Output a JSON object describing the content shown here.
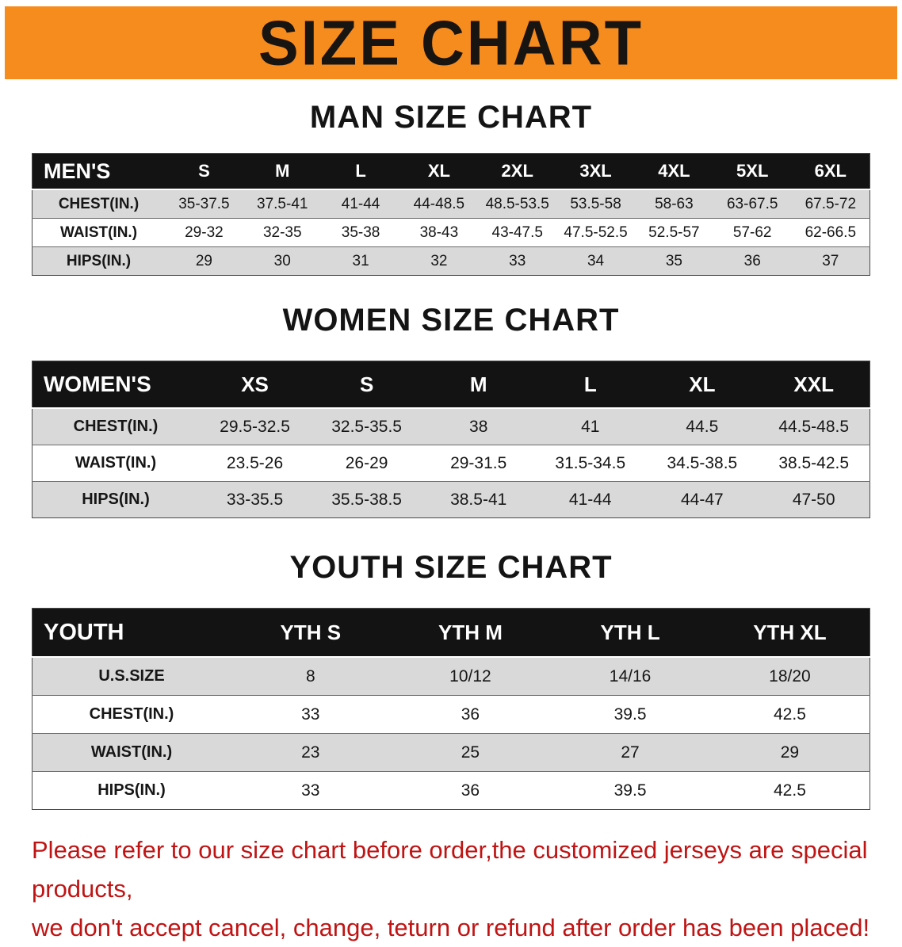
{
  "banner": {
    "title": "SIZE CHART",
    "bg_color": "#f68b1e",
    "text_color": "#181411"
  },
  "sections": [
    {
      "heading": "MAN SIZE CHART",
      "table": {
        "header": [
          "MEN'S",
          "S",
          "M",
          "L",
          "XL",
          "2XL",
          "3XL",
          "4XL",
          "5XL",
          "6XL"
        ],
        "rows": [
          {
            "label": "CHEST(IN.)",
            "values": [
              "35-37.5",
              "37.5-41",
              "41-44",
              "44-48.5",
              "48.5-53.5",
              "53.5-58",
              "58-63",
              "63-67.5",
              "67.5-72"
            ]
          },
          {
            "label": "WAIST(IN.)",
            "values": [
              "29-32",
              "32-35",
              "35-38",
              "38-43",
              "43-47.5",
              "47.5-52.5",
              "52.5-57",
              "57-62",
              "62-66.5"
            ]
          },
          {
            "label": "HIPS(IN.)",
            "values": [
              "29",
              "30",
              "31",
              "32",
              "33",
              "34",
              "35",
              "36",
              "37"
            ]
          }
        ]
      }
    },
    {
      "heading": "WOMEN SIZE CHART",
      "table": {
        "header": [
          "WOMEN'S",
          "XS",
          "S",
          "M",
          "L",
          "XL",
          "XXL"
        ],
        "rows": [
          {
            "label": "CHEST(IN.)",
            "values": [
              "29.5-32.5",
              "32.5-35.5",
              "38",
              "41",
              "44.5",
              "44.5-48.5"
            ]
          },
          {
            "label": "WAIST(IN.)",
            "values": [
              "23.5-26",
              "26-29",
              "29-31.5",
              "31.5-34.5",
              "34.5-38.5",
              "38.5-42.5"
            ]
          },
          {
            "label": "HIPS(IN.)",
            "values": [
              "33-35.5",
              "35.5-38.5",
              "38.5-41",
              "41-44",
              "44-47",
              "47-50"
            ]
          }
        ]
      }
    },
    {
      "heading": "YOUTH SIZE CHART",
      "table": {
        "header": [
          "YOUTH",
          "YTH S",
          "YTH M",
          "YTH L",
          "YTH XL"
        ],
        "rows": [
          {
            "label": "U.S.SIZE",
            "values": [
              "8",
              "10/12",
              "14/16",
              "18/20"
            ]
          },
          {
            "label": "CHEST(IN.)",
            "values": [
              "33",
              "36",
              "39.5",
              "42.5"
            ]
          },
          {
            "label": "WAIST(IN.)",
            "values": [
              "23",
              "25",
              "27",
              "29"
            ]
          },
          {
            "label": "HIPS(IN.)",
            "values": [
              "33",
              "36",
              "39.5",
              "42.5"
            ]
          }
        ]
      }
    }
  ],
  "footer": {
    "lines": [
      "Please refer to our size chart before order,the customized jerseys are special products,",
      "we don't accept cancel, change, teturn or refund after order has been placed!"
    ],
    "text_color": "#c01414"
  }
}
